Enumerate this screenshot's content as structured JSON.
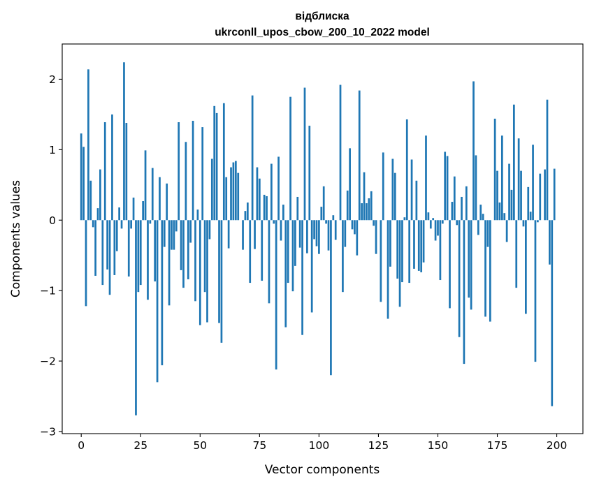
{
  "chart_data": {
    "type": "bar",
    "title": "відблиска",
    "subtitle": "ukrconll_upos_cbow_200_10_2022 model",
    "xlabel": "Vector components",
    "ylabel": "Components values",
    "xlim": [
      -8,
      211
    ],
    "ylim": [
      -3.03,
      2.5
    ],
    "xticks": [
      0,
      25,
      50,
      75,
      100,
      125,
      150,
      175,
      200
    ],
    "yticks": [
      -3,
      -2,
      -1,
      0,
      1,
      2
    ],
    "ytick_labels": [
      "−3",
      "−2",
      "−1",
      "0",
      "1",
      "2"
    ],
    "grid": false,
    "bar_color": "#1f77b4",
    "x": [
      0,
      1,
      2,
      3,
      4,
      5,
      6,
      7,
      8,
      9,
      10,
      11,
      12,
      13,
      14,
      15,
      16,
      17,
      18,
      19,
      20,
      21,
      22,
      23,
      24,
      25,
      26,
      27,
      28,
      29,
      30,
      31,
      32,
      33,
      34,
      35,
      36,
      37,
      38,
      39,
      40,
      41,
      42,
      43,
      44,
      45,
      46,
      47,
      48,
      49,
      50,
      51,
      52,
      53,
      54,
      55,
      56,
      57,
      58,
      59,
      60,
      61,
      62,
      63,
      64,
      65,
      66,
      67,
      68,
      69,
      70,
      71,
      72,
      73,
      74,
      75,
      76,
      77,
      78,
      79,
      80,
      81,
      82,
      83,
      84,
      85,
      86,
      87,
      88,
      89,
      90,
      91,
      92,
      93,
      94,
      95,
      96,
      97,
      98,
      99,
      100,
      101,
      102,
      103,
      104,
      105,
      106,
      107,
      108,
      109,
      110,
      111,
      112,
      113,
      114,
      115,
      116,
      117,
      118,
      119,
      120,
      121,
      122,
      123,
      124,
      125,
      126,
      127,
      128,
      129,
      130,
      131,
      132,
      133,
      134,
      135,
      136,
      137,
      138,
      139,
      140,
      141,
      142,
      143,
      144,
      145,
      146,
      147,
      148,
      149,
      150,
      151,
      152,
      153,
      154,
      155,
      156,
      157,
      158,
      159,
      160,
      161,
      162,
      163,
      164,
      165,
      166,
      167,
      168,
      169,
      170,
      171,
      172,
      173,
      174,
      175,
      176,
      177,
      178,
      179,
      180,
      181,
      182,
      183,
      184,
      185,
      186,
      187,
      188,
      189,
      190,
      191,
      192,
      193,
      194,
      195,
      196,
      197,
      198,
      199
    ],
    "values": [
      1.23,
      1.04,
      -1.22,
      2.14,
      0.56,
      -0.1,
      -0.79,
      0.17,
      0.72,
      -0.92,
      1.39,
      -0.7,
      -1.06,
      1.5,
      -0.78,
      -0.44,
      0.18,
      -0.12,
      2.24,
      1.38,
      -0.8,
      -0.12,
      0.32,
      -2.77,
      -1.02,
      -0.92,
      0.27,
      0.99,
      -1.13,
      -0.05,
      0.74,
      -0.87,
      -2.3,
      0.61,
      -2.06,
      -0.38,
      0.52,
      -1.21,
      -0.42,
      -0.42,
      -0.16,
      1.39,
      -0.71,
      -0.96,
      1.11,
      -0.84,
      -0.32,
      1.41,
      -1.15,
      0.15,
      -1.49,
      1.32,
      -1.02,
      -1.45,
      -0.27,
      0.87,
      1.62,
      1.52,
      -1.46,
      -1.74,
      1.66,
      0.61,
      -0.4,
      0.75,
      0.82,
      0.84,
      0.67,
      0.0,
      -0.42,
      0.13,
      0.25,
      -0.89,
      1.77,
      -0.41,
      0.75,
      0.59,
      -0.86,
      0.36,
      0.34,
      -1.18,
      0.8,
      -0.05,
      -2.12,
      0.9,
      -0.29,
      0.22,
      -1.52,
      -0.89,
      1.75,
      -1.01,
      -0.65,
      0.33,
      -0.39,
      -1.63,
      1.88,
      -0.47,
      1.34,
      -1.31,
      -0.27,
      -0.37,
      -0.48,
      0.19,
      0.48,
      -0.05,
      -0.43,
      -2.2,
      0.07,
      -0.28,
      0.0,
      1.92,
      -1.02,
      -0.38,
      0.42,
      1.02,
      -0.13,
      -0.2,
      -0.5,
      1.84,
      0.24,
      0.68,
      0.24,
      0.31,
      0.41,
      -0.08,
      -0.48,
      0.0,
      -1.16,
      0.96,
      0.0,
      -1.4,
      -0.66,
      0.87,
      0.67,
      -0.83,
      -1.23,
      -0.88,
      0.04,
      1.43,
      -0.89,
      0.86,
      -0.69,
      0.56,
      -0.72,
      -0.74,
      -0.6,
      1.2,
      0.11,
      -0.12,
      0.03,
      -0.29,
      -0.22,
      -0.85,
      -0.05,
      0.97,
      0.91,
      -1.25,
      0.26,
      0.62,
      -0.07,
      -1.66,
      0.33,
      -2.04,
      0.48,
      -1.1,
      -1.27,
      1.97,
      0.92,
      -0.21,
      0.22,
      0.09,
      -1.37,
      -0.38,
      -1.44,
      0.0,
      1.44,
      0.7,
      0.25,
      1.2,
      0.1,
      -0.31,
      0.8,
      0.43,
      1.64,
      -0.96,
      1.16,
      0.7,
      -0.09,
      -1.33,
      0.47,
      0.12,
      1.07,
      -2.01,
      -0.03,
      0.66,
      0.0,
      0.72,
      1.71,
      -0.63,
      -2.64,
      0.73
    ]
  }
}
